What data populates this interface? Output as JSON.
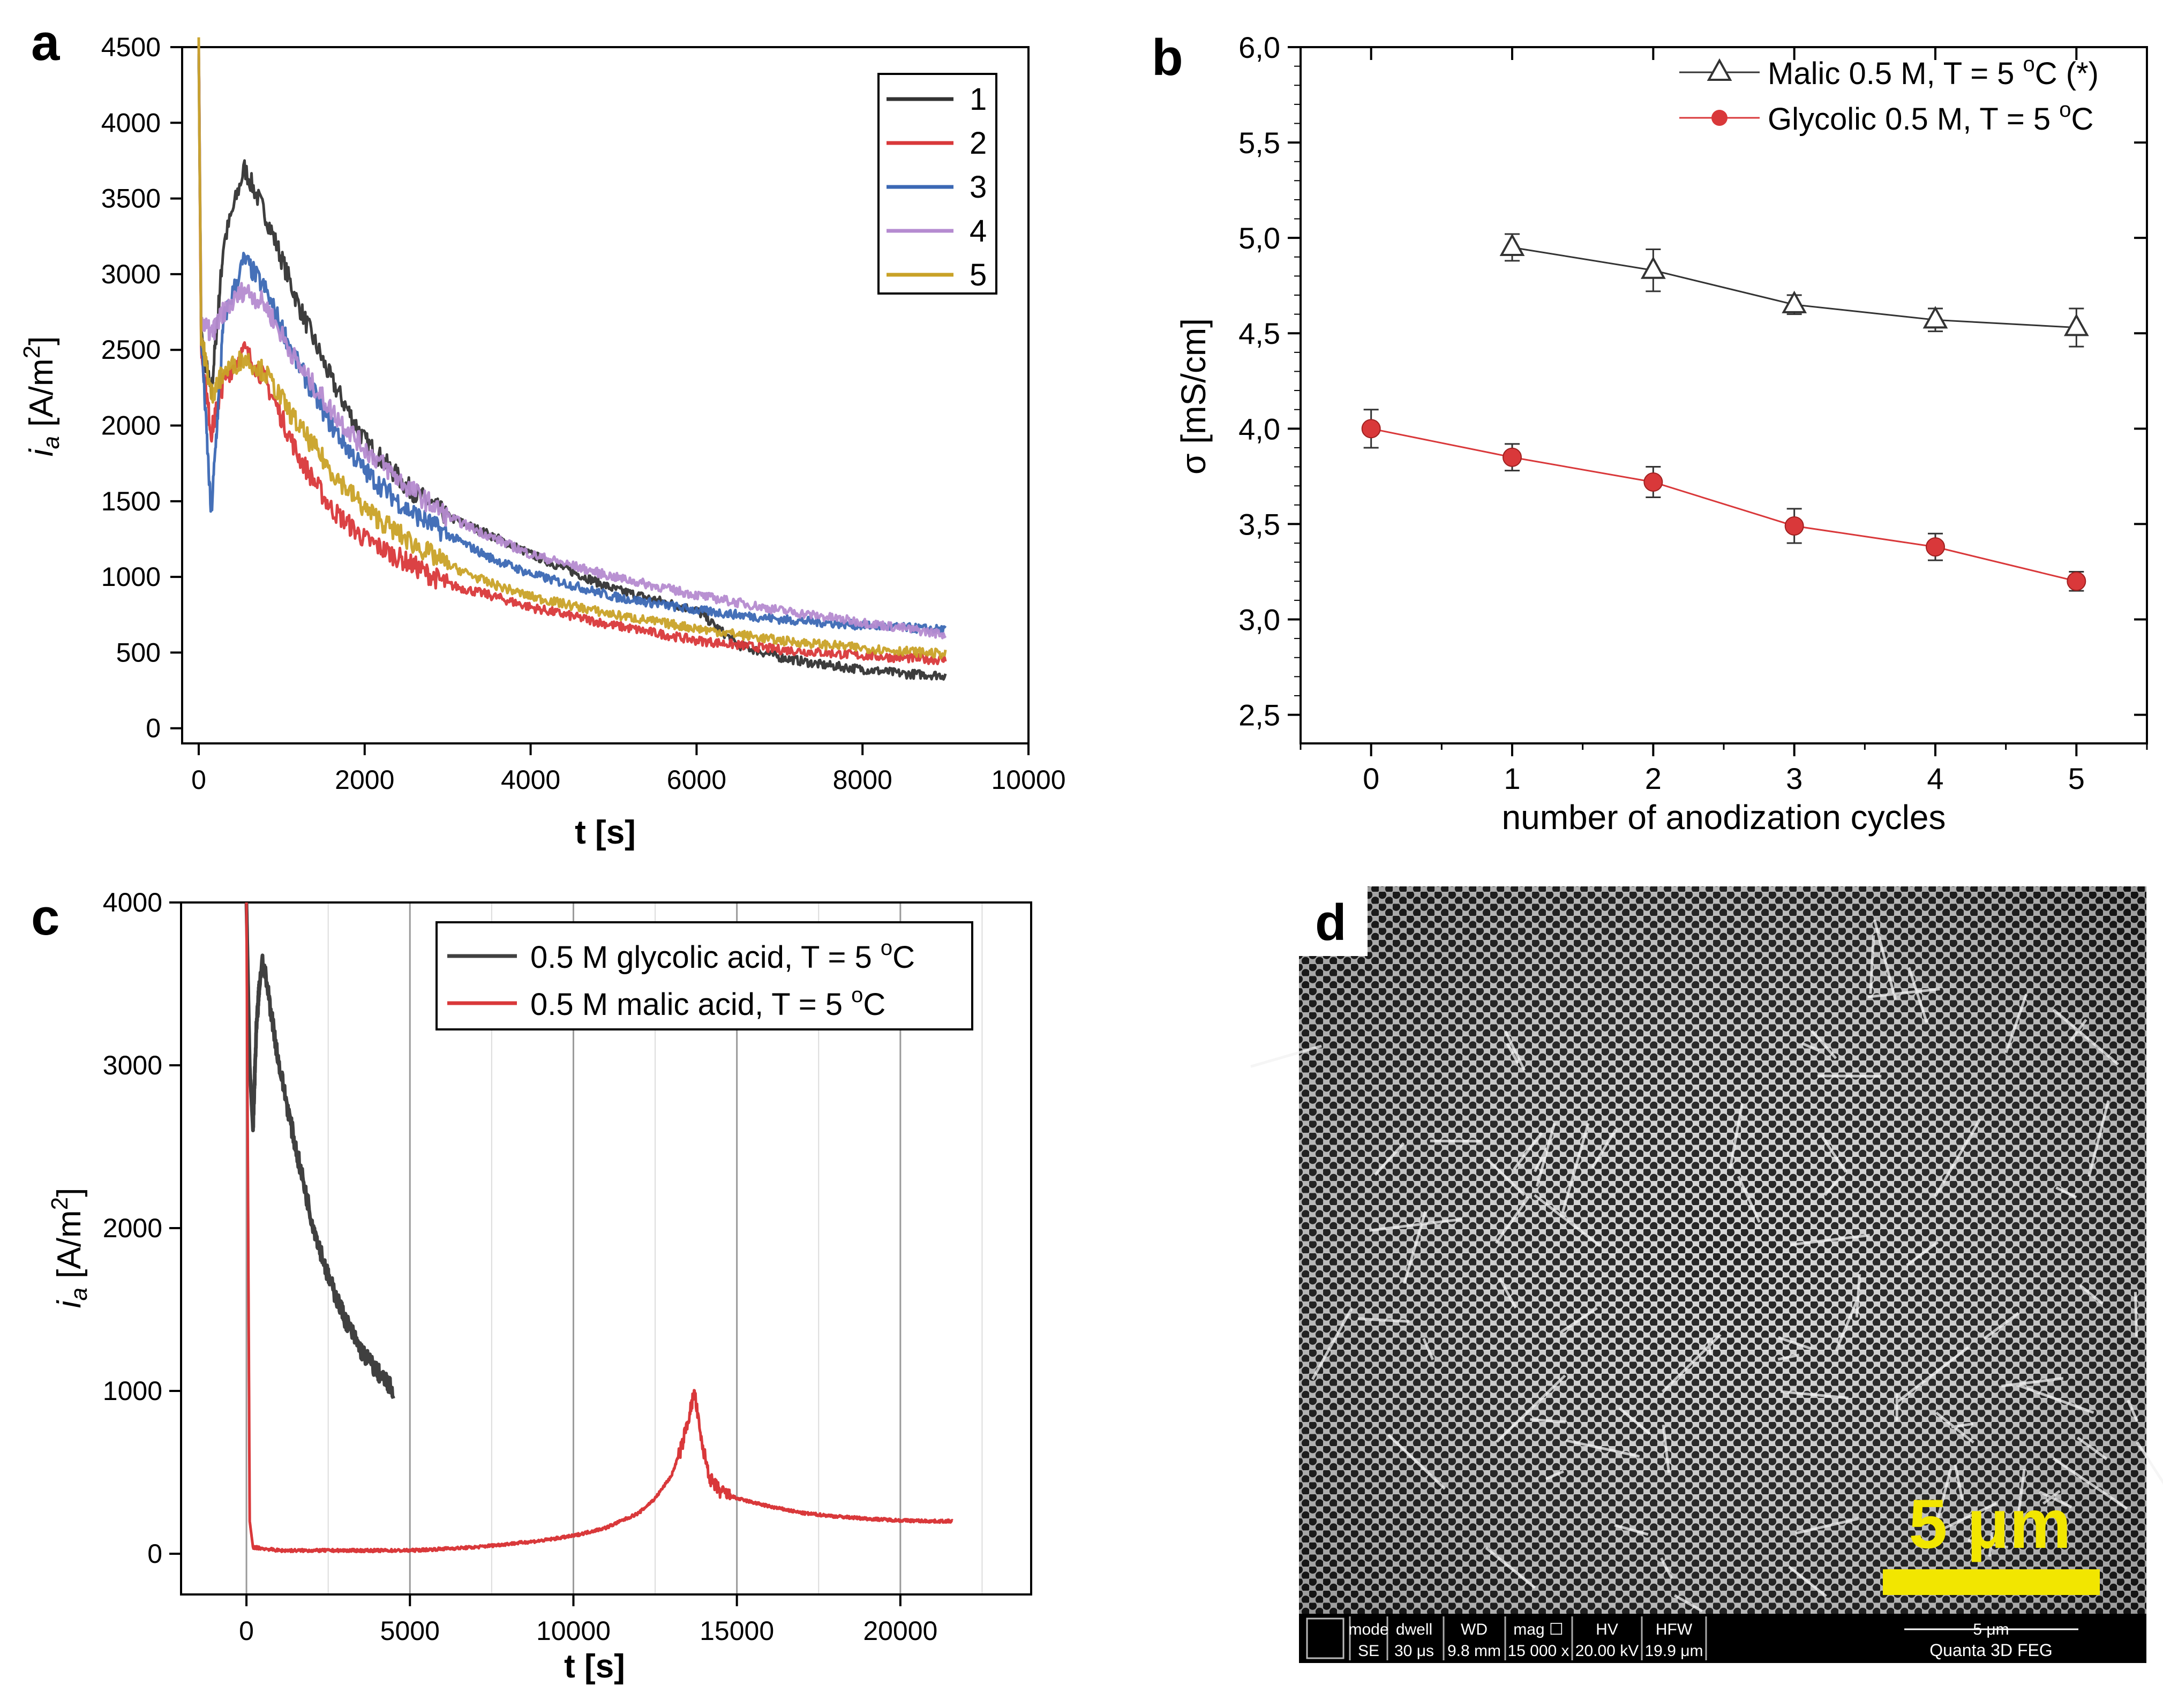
{
  "panels": {
    "a": {
      "letter": "a"
    },
    "b": {
      "letter": "b"
    },
    "c": {
      "letter": "c"
    },
    "d": {
      "letter": "d",
      "scale_label": "5 μm",
      "scale_color": "#f2e600",
      "footer_headers": [
        "mode",
        "dwell",
        "WD",
        "mag ☐",
        "HV",
        "HFW"
      ],
      "footer_values": [
        "SE",
        "30 μs",
        "9.8 mm",
        "15 000 x",
        "20.00 kV",
        "19.9 μm"
      ],
      "footer_scale": "5 μm",
      "footer_instrument": "Quanta 3D FEG"
    }
  },
  "chart_data": [
    {
      "panel": "a",
      "type": "line",
      "xlabel": "t [s]",
      "ylabel_main": "i",
      "ylabel_sub": "a",
      "ylabel_unit": " [A/m",
      "ylabel_sup": "2",
      "ylabel_end": "]",
      "xlim": [
        -200,
        10000
      ],
      "ylim": [
        -100,
        4500
      ],
      "xticks": [
        0,
        2000,
        4000,
        6000,
        8000,
        10000
      ],
      "yticks": [
        0,
        500,
        1000,
        1500,
        2000,
        2500,
        3000,
        3500,
        4000,
        4500
      ],
      "legend_position": "top-right",
      "series": [
        {
          "name": "1",
          "color": "#333333",
          "x": [
            0,
            30,
            150,
            300,
            550,
            800,
            1200,
            1600,
            2000,
            2500,
            3000,
            3500,
            4000,
            5000,
            6000,
            6500,
            7000,
            7500,
            8000,
            8500,
            9000
          ],
          "y": [
            4500,
            2600,
            2200,
            3200,
            3700,
            3400,
            2800,
            2300,
            1900,
            1600,
            1400,
            1280,
            1150,
            920,
            780,
            550,
            470,
            420,
            390,
            360,
            350
          ]
        },
        {
          "name": "2",
          "color": "#d9383a",
          "x": [
            0,
            30,
            150,
            300,
            550,
            800,
            1200,
            1600,
            2000,
            2500,
            3000,
            3500,
            4000,
            5000,
            6000,
            7000,
            8000,
            9000
          ],
          "y": [
            4500,
            2500,
            1950,
            2300,
            2500,
            2300,
            1800,
            1450,
            1250,
            1100,
            950,
            880,
            800,
            680,
            580,
            520,
            480,
            450
          ]
        },
        {
          "name": "3",
          "color": "#3b68b4",
          "x": [
            0,
            30,
            150,
            300,
            550,
            800,
            1200,
            1600,
            2000,
            2500,
            3000,
            3500,
            4000,
            5000,
            6000,
            7000,
            8000,
            9000
          ],
          "y": [
            4500,
            2600,
            1400,
            2700,
            3100,
            2900,
            2400,
            2000,
            1700,
            1450,
            1280,
            1130,
            1020,
            870,
            780,
            720,
            680,
            650
          ]
        },
        {
          "name": "4",
          "color": "#b58bd0",
          "x": [
            0,
            30,
            150,
            300,
            550,
            800,
            1200,
            1600,
            2000,
            2500,
            3000,
            3500,
            4000,
            5000,
            6000,
            7000,
            8000,
            9000
          ],
          "y": [
            4500,
            2700,
            2600,
            2750,
            2900,
            2800,
            2400,
            2100,
            1850,
            1600,
            1400,
            1270,
            1150,
            1000,
            880,
            780,
            700,
            620
          ]
        },
        {
          "name": "5",
          "color": "#c9a227",
          "x": [
            0,
            30,
            150,
            300,
            550,
            800,
            1200,
            1600,
            2000,
            2500,
            3000,
            3500,
            4000,
            5000,
            6000,
            7000,
            8000,
            9000
          ],
          "y": [
            4500,
            2600,
            2200,
            2350,
            2450,
            2350,
            2000,
            1700,
            1450,
            1250,
            1080,
            960,
            870,
            750,
            660,
            580,
            530,
            490
          ]
        }
      ]
    },
    {
      "panel": "b",
      "type": "line",
      "xlabel": "number of anodization cycles",
      "ylabel": "σ [mS/cm]",
      "xlim": [
        -0.5,
        5.5
      ],
      "ylim": [
        2.35,
        6.0
      ],
      "xticks": [
        0,
        1,
        2,
        3,
        4,
        5
      ],
      "yticks": [
        2.5,
        3.0,
        3.5,
        4.0,
        4.5,
        5.0,
        5.5,
        6.0
      ],
      "ytick_labels": [
        "2,5",
        "3,0",
        "3,5",
        "4,0",
        "4,5",
        "5,0",
        "5,5",
        "6,0"
      ],
      "legend_position": "top-right",
      "series": [
        {
          "name": "Malic 0.5 M, T = 5 °C (*)",
          "name_pre": "Malic 0.5 M, T = 5 ",
          "name_sup": "o",
          "name_post": "C (*)",
          "marker": "open-triangle",
          "color": "#333333",
          "x": [
            1,
            2,
            3,
            4,
            5
          ],
          "y": [
            4.95,
            4.83,
            4.65,
            4.57,
            4.53
          ],
          "err": [
            0.07,
            0.11,
            0.05,
            0.06,
            0.1
          ]
        },
        {
          "name": "Glycolic 0.5 M, T = 5 °C",
          "name_pre": "Glycolic 0.5 M, T = 5 ",
          "name_sup": "o",
          "name_post": "C",
          "marker": "filled-circle",
          "color": "#d9383a",
          "x": [
            0,
            1,
            2,
            3,
            4,
            5
          ],
          "y": [
            4.0,
            3.85,
            3.72,
            3.49,
            3.38,
            3.2
          ],
          "err": [
            0.1,
            0.07,
            0.08,
            0.09,
            0.07,
            0.05
          ]
        }
      ]
    },
    {
      "panel": "c",
      "type": "line",
      "xlabel": "t [s]",
      "ylabel_main": "i",
      "ylabel_sub": "a",
      "ylabel_unit": " [A/m",
      "ylabel_sup": "2",
      "ylabel_end": "]",
      "xlim": [
        -2000,
        24000
      ],
      "ylim": [
        -250,
        4000
      ],
      "xticks": [
        0,
        5000,
        10000,
        15000,
        20000
      ],
      "yticks": [
        0,
        1000,
        2000,
        3000,
        4000
      ],
      "grid": "vertical",
      "legend_position": "top-right",
      "series": [
        {
          "name": "0.5 M glycolic acid, T = 5 °C",
          "name_pre": "0.5 M glycolic acid, T = 5 ",
          "name_sup": "o",
          "name_post": "C",
          "color": "#404040",
          "x": [
            0,
            100,
            200,
            300,
            400,
            500,
            700,
            1000,
            1500,
            2000,
            2500,
            3000,
            3500,
            4000,
            4500
          ],
          "y": [
            4000,
            3000,
            2600,
            3200,
            3500,
            3650,
            3400,
            3000,
            2500,
            2050,
            1700,
            1450,
            1250,
            1120,
            1000
          ]
        },
        {
          "name": "0.5 M malic acid, T = 5 °C",
          "name_pre": "0.5 M malic acid, T = 5 ",
          "name_sup": "o",
          "name_post": "C",
          "color": "#d9383a",
          "x": [
            0,
            100,
            200,
            1000,
            3000,
            5000,
            7000,
            9000,
            10000,
            11000,
            12000,
            12500,
            13000,
            13300,
            13600,
            13700,
            13900,
            14200,
            14500,
            15000,
            16000,
            17000,
            18000,
            19000,
            20000,
            21000,
            21600
          ],
          "y": [
            4000,
            200,
            40,
            20,
            20,
            20,
            40,
            80,
            110,
            160,
            250,
            340,
            480,
            650,
            900,
            1000,
            700,
            450,
            380,
            340,
            290,
            250,
            230,
            215,
            205,
            200,
            200
          ]
        }
      ]
    }
  ]
}
